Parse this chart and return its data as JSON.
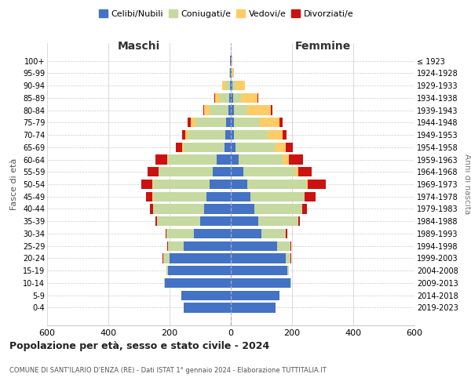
{
  "age_groups": [
    "0-4",
    "5-9",
    "10-14",
    "15-19",
    "20-24",
    "25-29",
    "30-34",
    "35-39",
    "40-44",
    "45-49",
    "50-54",
    "55-59",
    "60-64",
    "65-69",
    "70-74",
    "75-79",
    "80-84",
    "85-89",
    "90-94",
    "95-99",
    "100+"
  ],
  "birth_years": [
    "2019-2023",
    "2014-2018",
    "2009-2013",
    "2004-2008",
    "1999-2003",
    "1994-1998",
    "1989-1993",
    "1984-1988",
    "1979-1983",
    "1974-1978",
    "1969-1973",
    "1964-1968",
    "1959-1963",
    "1954-1958",
    "1949-1953",
    "1944-1948",
    "1939-1943",
    "1934-1938",
    "1929-1933",
    "1924-1928",
    "≤ 1923"
  ],
  "maschi": {
    "celibe": [
      155,
      162,
      215,
      205,
      200,
      155,
      120,
      100,
      88,
      80,
      70,
      60,
      45,
      20,
      18,
      15,
      8,
      6,
      3,
      2,
      2
    ],
    "coniugato": [
      0,
      0,
      2,
      5,
      20,
      50,
      90,
      140,
      165,
      175,
      185,
      175,
      160,
      135,
      120,
      100,
      60,
      30,
      15,
      3,
      1
    ],
    "vedovo": [
      0,
      0,
      0,
      0,
      0,
      0,
      0,
      0,
      0,
      1,
      2,
      2,
      2,
      5,
      10,
      15,
      20,
      15,
      10,
      1,
      0
    ],
    "divorziato": [
      0,
      0,
      0,
      0,
      2,
      2,
      3,
      5,
      10,
      20,
      35,
      35,
      40,
      20,
      12,
      10,
      3,
      2,
      0,
      0,
      0
    ]
  },
  "femmine": {
    "nubile": [
      145,
      158,
      195,
      185,
      180,
      150,
      100,
      90,
      78,
      65,
      55,
      40,
      25,
      15,
      10,
      10,
      10,
      8,
      5,
      3,
      2
    ],
    "coniugata": [
      0,
      0,
      2,
      5,
      15,
      45,
      80,
      130,
      155,
      175,
      190,
      170,
      145,
      130,
      110,
      85,
      45,
      25,
      10,
      3,
      1
    ],
    "vedova": [
      0,
      0,
      0,
      0,
      0,
      0,
      0,
      0,
      1,
      2,
      5,
      10,
      20,
      35,
      50,
      65,
      75,
      55,
      30,
      5,
      2
    ],
    "divorziata": [
      0,
      0,
      0,
      0,
      2,
      3,
      5,
      5,
      15,
      35,
      60,
      45,
      45,
      22,
      12,
      10,
      5,
      2,
      0,
      0,
      0
    ]
  },
  "colors": {
    "celibe": "#4472C4",
    "coniugato": "#C5D9A0",
    "vedovo": "#FFCC66",
    "divorziato": "#CC1111"
  },
  "xlim": 600,
  "title": "Popolazione per età, sesso e stato civile - 2024",
  "subtitle": "COMUNE DI SANT'ILARIO D'ENZA (RE) - Dati ISTAT 1° gennaio 2024 - Elaborazione TUTTITALIA.IT",
  "ylabel_left": "Fasce di età",
  "ylabel_right": "Anni di nascita",
  "xlabel_maschi": "Maschi",
  "xlabel_femmine": "Femmine",
  "legend_labels": [
    "Celibi/Nubili",
    "Coniugati/e",
    "Vedovi/e",
    "Divorziati/e"
  ],
  "bg_color": "#ffffff",
  "grid_color": "#cccccc"
}
